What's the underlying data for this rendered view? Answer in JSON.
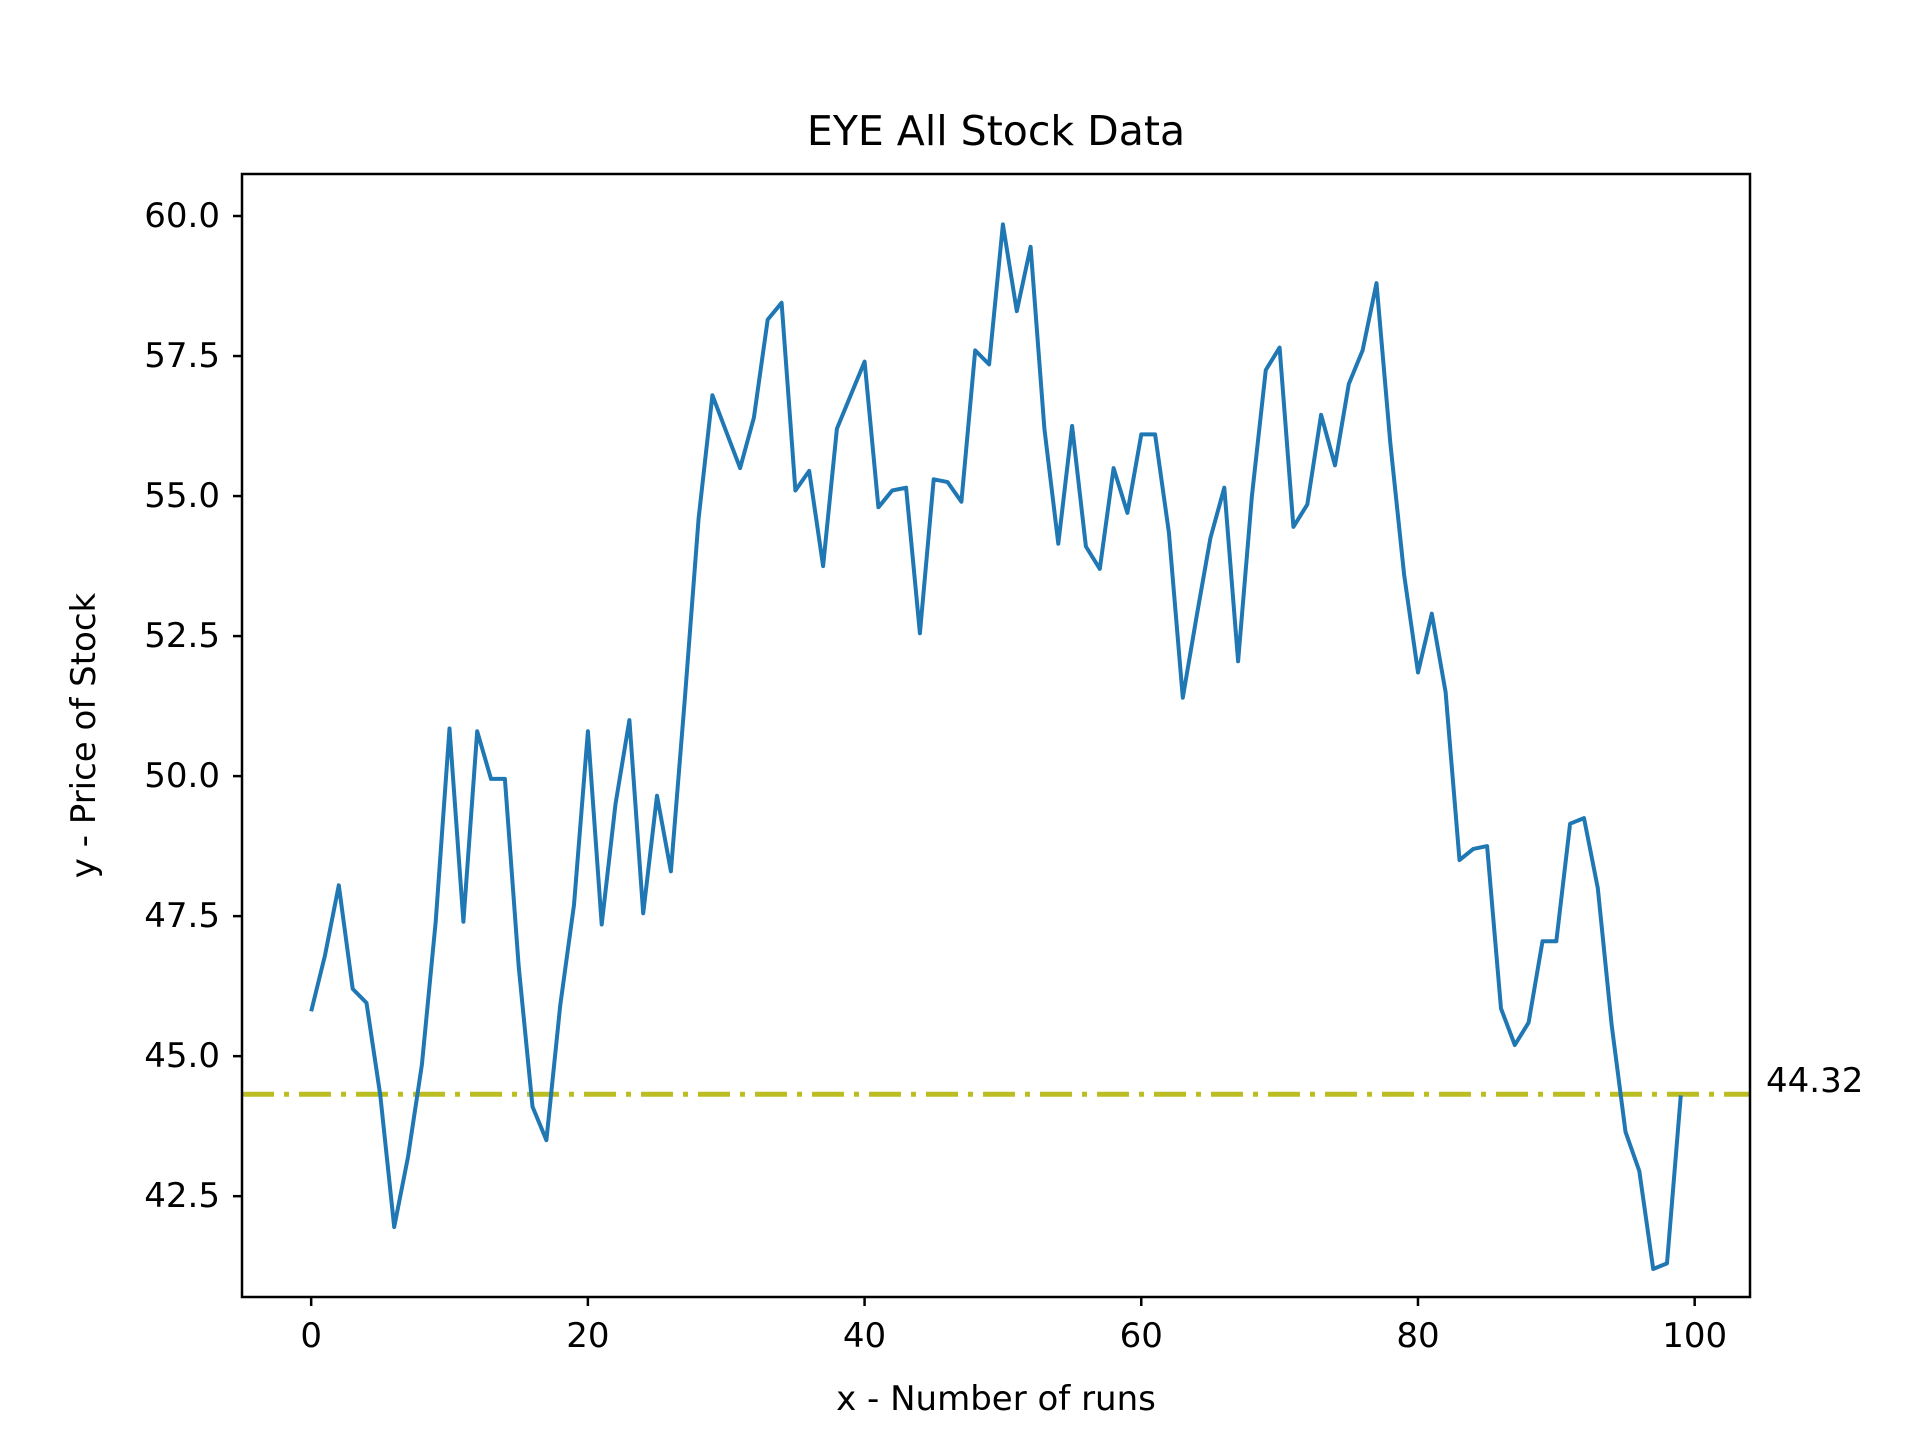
{
  "chart_data": {
    "type": "line",
    "title": "EYE All Stock Data",
    "xlabel": "x - Number of runs",
    "ylabel": "y - Price of Stock",
    "xlim": [
      -5,
      104
    ],
    "ylim": [
      40.7,
      60.75
    ],
    "xticks": [
      0,
      20,
      40,
      60,
      80,
      100
    ],
    "yticks": [
      42.5,
      45.0,
      47.5,
      50.0,
      52.5,
      55.0,
      57.5,
      60.0
    ],
    "grid": false,
    "series": [
      {
        "color": "#1f77b4",
        "x": [
          0,
          1,
          2,
          3,
          4,
          5,
          6,
          7,
          8,
          9,
          10,
          11,
          12,
          13,
          14,
          15,
          16,
          17,
          18,
          19,
          20,
          21,
          22,
          23,
          24,
          25,
          26,
          27,
          28,
          29,
          30,
          31,
          32,
          33,
          34,
          35,
          36,
          37,
          38,
          39,
          40,
          41,
          42,
          43,
          44,
          45,
          46,
          47,
          48,
          49,
          50,
          51,
          52,
          53,
          54,
          55,
          56,
          57,
          58,
          59,
          60,
          61,
          62,
          63,
          64,
          65,
          66,
          67,
          68,
          69,
          70,
          71,
          72,
          73,
          74,
          75,
          76,
          77,
          78,
          79,
          80,
          81,
          82,
          83,
          84,
          85,
          86,
          87,
          88,
          89,
          90,
          91,
          92,
          93,
          94,
          95,
          96,
          97,
          98,
          99
        ],
        "y": [
          45.8,
          46.8,
          48.05,
          46.2,
          45.95,
          44.3,
          41.95,
          43.2,
          44.85,
          47.4,
          50.85,
          47.4,
          50.8,
          49.95,
          49.95,
          46.6,
          44.1,
          43.5,
          45.9,
          47.7,
          50.8,
          47.35,
          49.5,
          51.0,
          47.55,
          49.65,
          48.3,
          51.35,
          54.6,
          56.8,
          56.15,
          55.5,
          56.4,
          58.15,
          58.45,
          55.1,
          55.45,
          53.75,
          56.2,
          56.8,
          57.4,
          54.8,
          55.1,
          55.15,
          52.55,
          55.3,
          55.25,
          54.9,
          57.6,
          57.35,
          59.85,
          58.3,
          59.45,
          56.2,
          54.15,
          56.25,
          54.1,
          53.7,
          55.5,
          54.7,
          56.1,
          56.1,
          54.35,
          51.4,
          52.85,
          54.25,
          55.15,
          52.05,
          55.0,
          57.25,
          57.65,
          54.45,
          54.85,
          56.45,
          55.55,
          57.0,
          57.6,
          58.8,
          55.95,
          53.6,
          51.85,
          52.9,
          51.5,
          48.5,
          48.7,
          48.75,
          45.85,
          45.2,
          45.6,
          47.05,
          47.05,
          49.15,
          49.25,
          48.0,
          45.55,
          43.65,
          42.95,
          41.2,
          41.3,
          44.3
        ]
      }
    ],
    "reference_line": {
      "value": 44.32,
      "label": "44.32",
      "color": "#bcbd22",
      "style": "dash-dot"
    }
  }
}
